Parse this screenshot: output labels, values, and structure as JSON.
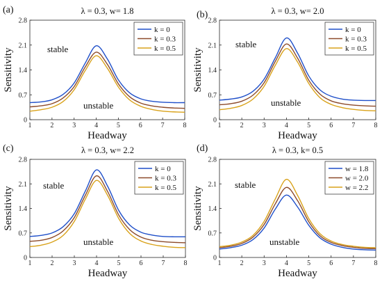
{
  "chart_data": [
    {
      "type": "line",
      "panel_label": "(a)",
      "title": "λ = 0.3, w= 1.8",
      "xlabel": "Headway",
      "ylabel": "Sensitivity",
      "xlim": [
        1,
        8
      ],
      "ylim": [
        0,
        2.8
      ],
      "xticks": [
        1,
        2,
        3,
        4,
        5,
        6,
        7,
        8
      ],
      "yticks": [
        0,
        0.7,
        1.4,
        2.1,
        2.8
      ],
      "legend_position": "top-right",
      "annotations": [
        "stable",
        "unstable"
      ],
      "x": [
        1,
        1.5,
        2,
        2.5,
        3,
        3.5,
        4,
        4.5,
        5,
        5.5,
        6,
        6.5,
        7,
        7.5,
        8
      ],
      "series": [
        {
          "name": "k = 0",
          "color": "#1f4fc9",
          "values": [
            0.48,
            0.5,
            0.56,
            0.71,
            1.03,
            1.59,
            2.08,
            1.71,
            1.12,
            0.76,
            0.59,
            0.52,
            0.49,
            0.48,
            0.48
          ]
        },
        {
          "name": "k = 0.3",
          "color": "#8c4a2a",
          "values": [
            0.36,
            0.39,
            0.45,
            0.61,
            0.93,
            1.48,
            1.9,
            1.56,
            1.01,
            0.65,
            0.47,
            0.39,
            0.35,
            0.33,
            0.32
          ]
        },
        {
          "name": "k = 0.5",
          "color": "#d9a21a",
          "values": [
            0.24,
            0.28,
            0.35,
            0.51,
            0.84,
            1.38,
            1.8,
            1.45,
            0.92,
            0.56,
            0.38,
            0.29,
            0.24,
            0.22,
            0.21
          ]
        }
      ]
    },
    {
      "type": "line",
      "panel_label": "(b)",
      "title": "λ = 0.3, w= 2.0",
      "xlabel": "Headway",
      "ylabel": "Sensitivity",
      "xlim": [
        1,
        8
      ],
      "ylim": [
        0,
        2.8
      ],
      "xticks": [
        1,
        2,
        3,
        4,
        5,
        6,
        7,
        8
      ],
      "yticks": [
        0,
        0.7,
        1.4,
        2.1,
        2.8
      ],
      "legend_position": "top-right",
      "annotations": [
        "stable",
        "unstable"
      ],
      "x": [
        1,
        1.5,
        2,
        2.5,
        3,
        3.5,
        4,
        4.5,
        5,
        5.5,
        6,
        6.5,
        7,
        7.5,
        8
      ],
      "series": [
        {
          "name": "k = 0",
          "color": "#1f4fc9",
          "values": [
            0.55,
            0.58,
            0.64,
            0.8,
            1.14,
            1.74,
            2.3,
            1.87,
            1.23,
            0.84,
            0.66,
            0.58,
            0.55,
            0.54,
            0.54
          ]
        },
        {
          "name": "k = 0.3",
          "color": "#8c4a2a",
          "values": [
            0.42,
            0.45,
            0.52,
            0.69,
            1.04,
            1.64,
            2.13,
            1.73,
            1.11,
            0.72,
            0.53,
            0.45,
            0.41,
            0.39,
            0.38
          ]
        },
        {
          "name": "k = 0.5",
          "color": "#d9a21a",
          "values": [
            0.28,
            0.32,
            0.4,
            0.58,
            0.94,
            1.53,
            2.0,
            1.62,
            1.02,
            0.62,
            0.43,
            0.34,
            0.29,
            0.26,
            0.25
          ]
        }
      ]
    },
    {
      "type": "line",
      "panel_label": "(c)",
      "title": "λ = 0.3, w= 2.2",
      "xlabel": "Headway",
      "ylabel": "Sensitivity",
      "xlim": [
        1,
        8
      ],
      "ylim": [
        0,
        2.8
      ],
      "xticks": [
        1,
        2,
        3,
        4,
        5,
        6,
        7,
        8
      ],
      "yticks": [
        0,
        0.7,
        1.4,
        2.1,
        2.8
      ],
      "legend_position": "top-right",
      "annotations": [
        "stable",
        "unstable"
      ],
      "x": [
        1,
        1.5,
        2,
        2.5,
        3,
        3.5,
        4,
        4.5,
        5,
        5.5,
        6,
        6.5,
        7,
        7.5,
        8
      ],
      "series": [
        {
          "name": "k = 0",
          "color": "#1f4fc9",
          "values": [
            0.6,
            0.63,
            0.7,
            0.88,
            1.25,
            1.9,
            2.5,
            2.03,
            1.34,
            0.92,
            0.72,
            0.64,
            0.6,
            0.59,
            0.59
          ]
        },
        {
          "name": "k = 0.3",
          "color": "#8c4a2a",
          "values": [
            0.46,
            0.49,
            0.57,
            0.76,
            1.14,
            1.78,
            2.33,
            1.88,
            1.21,
            0.79,
            0.58,
            0.49,
            0.45,
            0.43,
            0.42
          ]
        },
        {
          "name": "k = 0.5",
          "color": "#d9a21a",
          "values": [
            0.31,
            0.35,
            0.44,
            0.63,
            1.03,
            1.67,
            2.2,
            1.77,
            1.11,
            0.68,
            0.47,
            0.37,
            0.32,
            0.29,
            0.28
          ]
        }
      ]
    },
    {
      "type": "line",
      "panel_label": "(d)",
      "title": "λ = 0.3, k= 0.5",
      "xlabel": "Headway",
      "ylabel": "Sensitivity",
      "xlim": [
        1,
        8
      ],
      "ylim": [
        0,
        2.8
      ],
      "xticks": [
        1,
        2,
        3,
        4,
        5,
        6,
        7,
        8
      ],
      "yticks": [
        0,
        0.7,
        1.4,
        2.1,
        2.8
      ],
      "legend_position": "top-right",
      "annotations": [
        "stable",
        "unstable"
      ],
      "x": [
        1,
        1.5,
        2,
        2.5,
        3,
        3.5,
        4,
        4.5,
        5,
        5.5,
        6,
        6.5,
        7,
        7.5,
        8
      ],
      "series": [
        {
          "name": "w = 1.8",
          "color": "#1f4fc9",
          "values": [
            0.24,
            0.28,
            0.35,
            0.51,
            0.84,
            1.38,
            1.78,
            1.44,
            0.92,
            0.56,
            0.38,
            0.29,
            0.24,
            0.22,
            0.21
          ]
        },
        {
          "name": "w = 2.0",
          "color": "#8c4a2a",
          "values": [
            0.28,
            0.32,
            0.4,
            0.58,
            0.94,
            1.53,
            2.0,
            1.62,
            1.02,
            0.62,
            0.43,
            0.34,
            0.29,
            0.26,
            0.25
          ]
        },
        {
          "name": "w = 2.2",
          "color": "#d9a21a",
          "values": [
            0.31,
            0.35,
            0.44,
            0.63,
            1.03,
            1.67,
            2.23,
            1.77,
            1.11,
            0.68,
            0.47,
            0.37,
            0.32,
            0.29,
            0.28
          ]
        }
      ]
    }
  ]
}
